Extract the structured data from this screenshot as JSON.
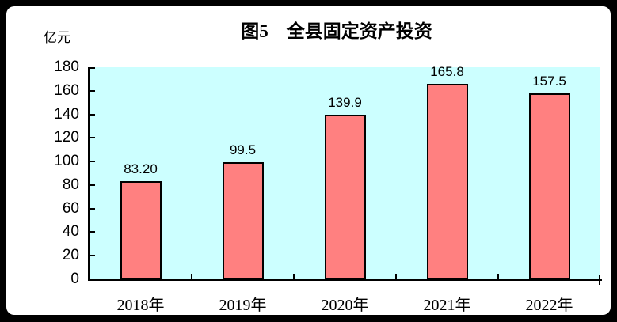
{
  "title": "图5　全县固定资产投资",
  "unit_label": "亿元",
  "colors": {
    "frame_border": "#000000",
    "page_background": "#ffffff",
    "plot_background": "#ccffff",
    "bar_fill": "#ff8080",
    "bar_border": "#000000",
    "axis": "#000000",
    "text": "#000000"
  },
  "chart_data": {
    "type": "bar",
    "title": "图5　全县固定资产投资",
    "ylabel": "亿元",
    "xlabel": "",
    "categories": [
      "2018年",
      "2019年",
      "2020年",
      "2021年",
      "2022年"
    ],
    "values": [
      83.2,
      99.5,
      139.9,
      165.8,
      157.5
    ],
    "value_labels": [
      "83.20",
      "99.5",
      "139.9",
      "165.8",
      "157.5"
    ],
    "ylim": [
      0,
      180
    ],
    "ytick_step": 20,
    "ytick_labels": [
      "0",
      "20",
      "40",
      "60",
      "80",
      "100",
      "120",
      "140",
      "160",
      "180"
    ],
    "grid": false,
    "legend": "none",
    "data_labels": "above-bars"
  }
}
